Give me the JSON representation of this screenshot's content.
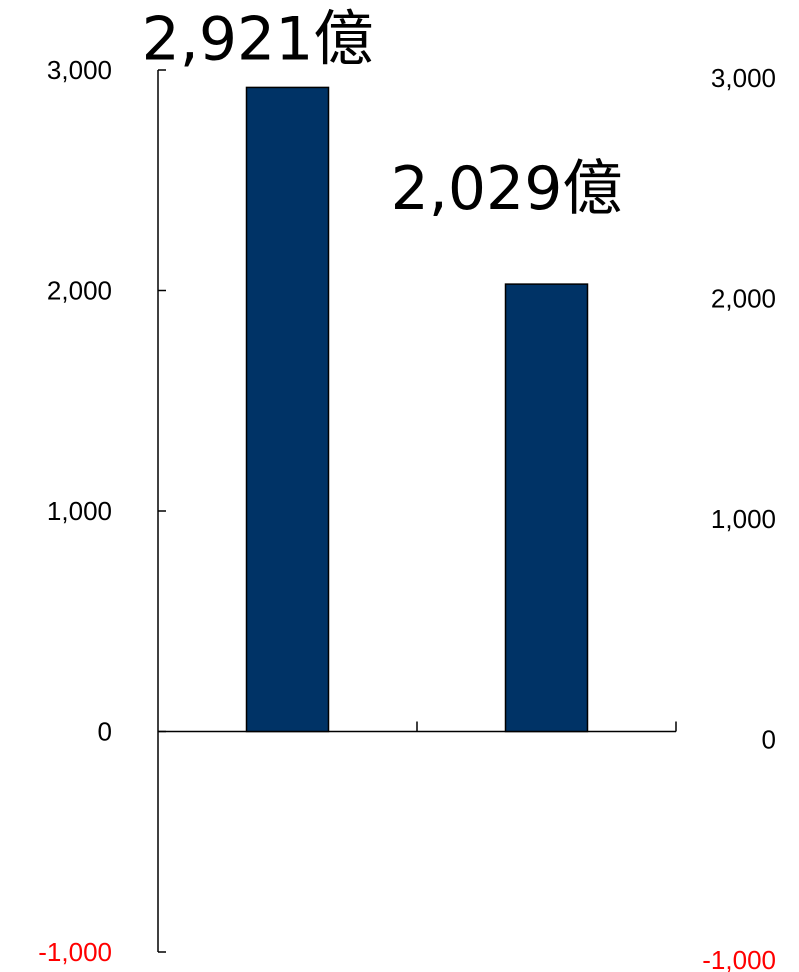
{
  "chart_data": {
    "type": "bar",
    "categories": [
      "",
      ""
    ],
    "values": [
      2921,
      2029
    ],
    "data_labels": [
      "2,921億",
      "2,029億"
    ],
    "ylim": [
      -1000,
      3000
    ],
    "y_ticks": [
      {
        "value": 3000,
        "label": "3,000",
        "color": "#000000"
      },
      {
        "value": 2000,
        "label": "2,000",
        "color": "#000000"
      },
      {
        "value": 1000,
        "label": "1,000",
        "color": "#000000"
      },
      {
        "value": 0,
        "label": "0",
        "color": "#000000"
      },
      {
        "value": -1000,
        "label": "-1,000",
        "color": "#ff0000"
      }
    ],
    "secondary_axis": true,
    "bar_color": "#003366",
    "grid": false,
    "title": "",
    "xlabel": "",
    "ylabel": ""
  }
}
